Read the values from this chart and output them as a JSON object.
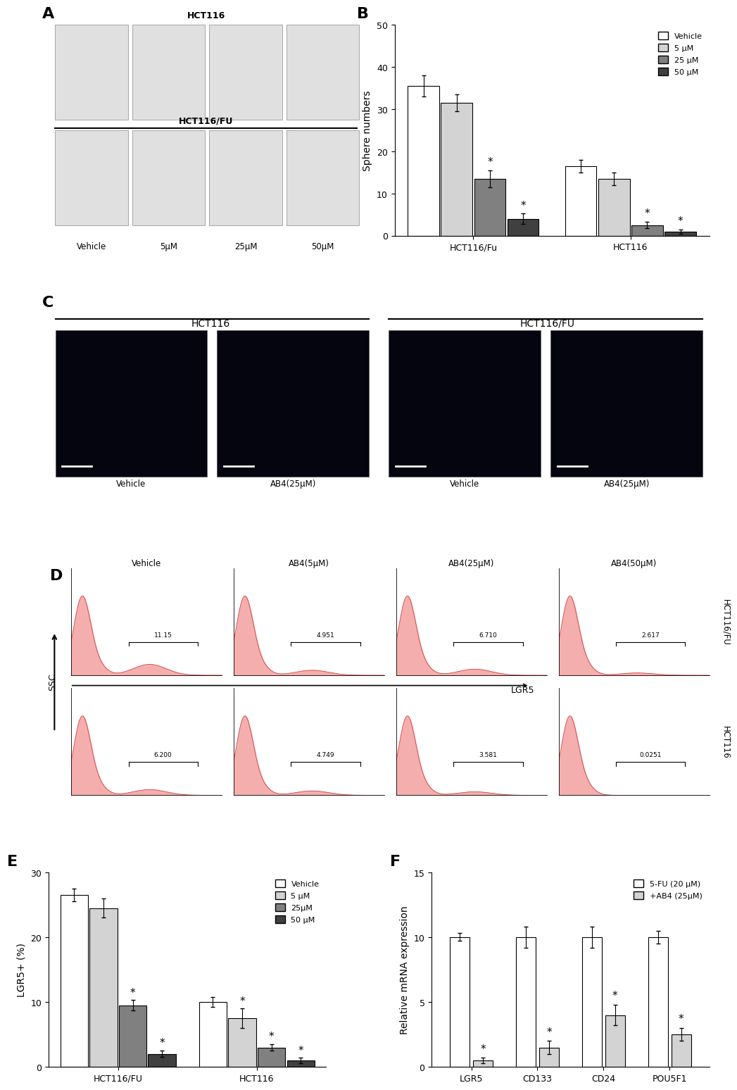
{
  "panel_B": {
    "groups": [
      "HCT116/Fu",
      "HCT116"
    ],
    "conditions": [
      "Vehicle",
      "5 μM",
      "25 μM",
      "50 μM"
    ],
    "colors": [
      "#ffffff",
      "#d3d3d3",
      "#808080",
      "#404040"
    ],
    "values": {
      "HCT116/Fu": [
        35.5,
        31.5,
        13.5,
        4.0
      ],
      "HCT116": [
        16.5,
        13.5,
        2.5,
        1.0
      ]
    },
    "errors": {
      "HCT116/Fu": [
        2.5,
        2.0,
        2.0,
        1.2
      ],
      "HCT116": [
        1.5,
        1.5,
        0.8,
        0.5
      ]
    },
    "sig": {
      "HCT116/Fu": [
        false,
        false,
        true,
        true
      ],
      "HCT116": [
        false,
        false,
        true,
        true
      ]
    },
    "ylabel": "Sphere numbers",
    "ylim": [
      0,
      50
    ],
    "yticks": [
      0,
      10,
      20,
      30,
      40,
      50
    ]
  },
  "panel_E": {
    "groups": [
      "HCT116/FU",
      "HCT116"
    ],
    "conditions": [
      "Vehicle",
      "5 μM",
      "25μM",
      "50 μM"
    ],
    "colors": [
      "#ffffff",
      "#d3d3d3",
      "#808080",
      "#404040"
    ],
    "values": {
      "HCT116/FU": [
        26.5,
        24.5,
        9.5,
        2.0
      ],
      "HCT116": [
        10.0,
        7.5,
        3.0,
        1.0
      ]
    },
    "errors": {
      "HCT116/FU": [
        1.0,
        1.5,
        0.8,
        0.5
      ],
      "HCT116": [
        0.8,
        1.5,
        0.5,
        0.4
      ]
    },
    "sig": {
      "HCT116/FU": [
        false,
        false,
        true,
        true
      ],
      "HCT116": [
        false,
        true,
        true,
        true
      ]
    },
    "ylabel": "LGR5+ (%)",
    "ylim": [
      0,
      30
    ],
    "yticks": [
      0,
      10,
      20,
      30
    ]
  },
  "panel_F": {
    "genes": [
      "LGR5",
      "CD133",
      "CD24",
      "POU5F1"
    ],
    "conditions": [
      "5-FU (20 μM)",
      "+AB4 (25μM)"
    ],
    "colors": [
      "#ffffff",
      "#d3d3d3"
    ],
    "values": {
      "5-FU (20 μM)": [
        10.0,
        10.0,
        10.0,
        10.0
      ],
      "+AB4 (25μM)": [
        0.5,
        1.5,
        4.0,
        2.5
      ]
    },
    "errors": {
      "5-FU (20 μM)": [
        0.3,
        0.8,
        0.8,
        0.5
      ],
      "+AB4 (25μM)": [
        0.2,
        0.5,
        0.8,
        0.5
      ]
    },
    "sig": [
      true,
      true,
      true,
      true
    ],
    "ylabel": "Relative mRNA expression",
    "ylim": [
      0,
      15
    ],
    "yticks": [
      0,
      5,
      10,
      15
    ]
  },
  "panel_D": {
    "col_labels": [
      "Vehicle",
      "AB4(5μM)",
      "AB4(25μM)",
      "AB4(50μM)"
    ],
    "row_labels": [
      "HCT116/FU",
      "HCT116"
    ],
    "values": [
      [
        "11.15",
        "4.951",
        "6.710",
        "2.617"
      ],
      [
        "6.200",
        "4.749",
        "3.581",
        "0.0251"
      ]
    ],
    "xlabel": "LGR5",
    "ylabel": "SSC"
  },
  "background_color": "#ffffff",
  "tick_fontsize": 9,
  "axis_label_fontsize": 10
}
